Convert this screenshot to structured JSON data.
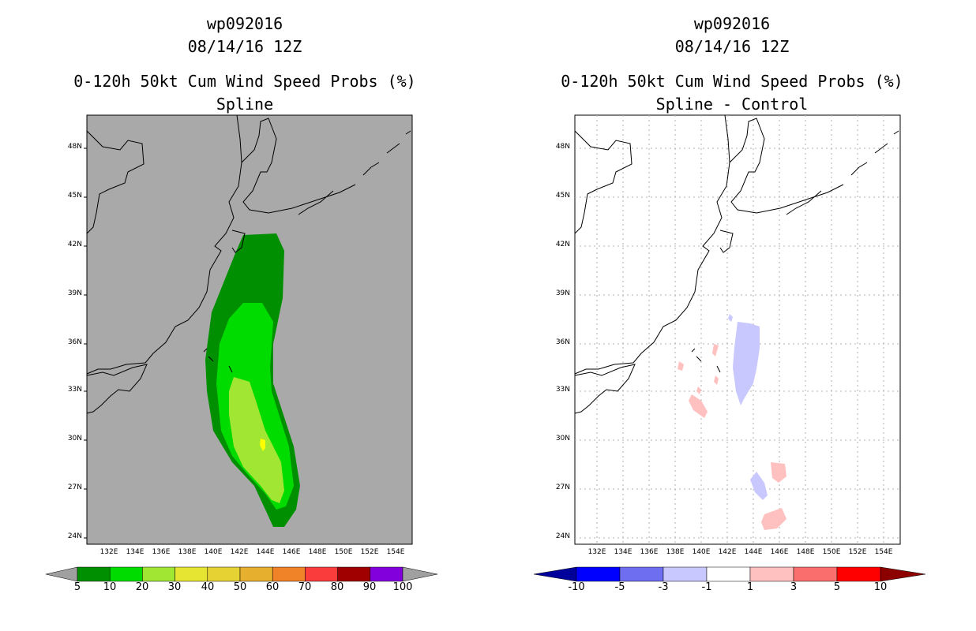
{
  "left_panel": {
    "storm_id": "wp092016",
    "datetime": "08/14/16 12Z",
    "product": "0-120h 50kt Cum Wind Speed Probs (%)",
    "subtitle": "Spline",
    "lat_labels": [
      "48N",
      "45N",
      "42N",
      "39N",
      "36N",
      "33N",
      "30N",
      "27N",
      "24N"
    ],
    "lon_labels": [
      "132E",
      "134E",
      "136E",
      "138E",
      "140E",
      "142E",
      "144E",
      "146E",
      "148E",
      "150E",
      "152E",
      "154E"
    ],
    "colorbar": {
      "labels": [
        "5",
        "10",
        "20",
        "30",
        "40",
        "50",
        "60",
        "70",
        "80",
        "90",
        "100"
      ],
      "colors": [
        "#008f00",
        "#00dc00",
        "#a0e632",
        "#e6dc32",
        "#e6d232",
        "#e6af2d",
        "#f08228",
        "#fa3c3c",
        "#a00000",
        "#8200dc"
      ],
      "end_color": "#a0a0a0"
    },
    "background_color": "#a9a9a9"
  },
  "right_panel": {
    "storm_id": "wp092016",
    "datetime": "08/14/16 12Z",
    "product": "0-120h 50kt Cum Wind Speed Probs (%)",
    "subtitle": "Spline - Control",
    "lat_labels": [
      "48N",
      "45N",
      "42N",
      "39N",
      "36N",
      "33N",
      "30N",
      "27N",
      "24N"
    ],
    "lon_labels": [
      "132E",
      "134E",
      "136E",
      "138E",
      "140E",
      "142E",
      "144E",
      "146E",
      "148E",
      "150E",
      "152E",
      "154E"
    ],
    "colorbar": {
      "labels": [
        "-10",
        "-5",
        "-3",
        "-1",
        "1",
        "3",
        "5",
        "10"
      ],
      "colors": [
        "#0000ff",
        "#6e6ef0",
        "#c8c8ff",
        "#ffffff",
        "#ffc0c0",
        "#fa6e6e",
        "#ff0000"
      ],
      "low_end_color": "#00009a",
      "high_end_color": "#8c0000"
    }
  }
}
